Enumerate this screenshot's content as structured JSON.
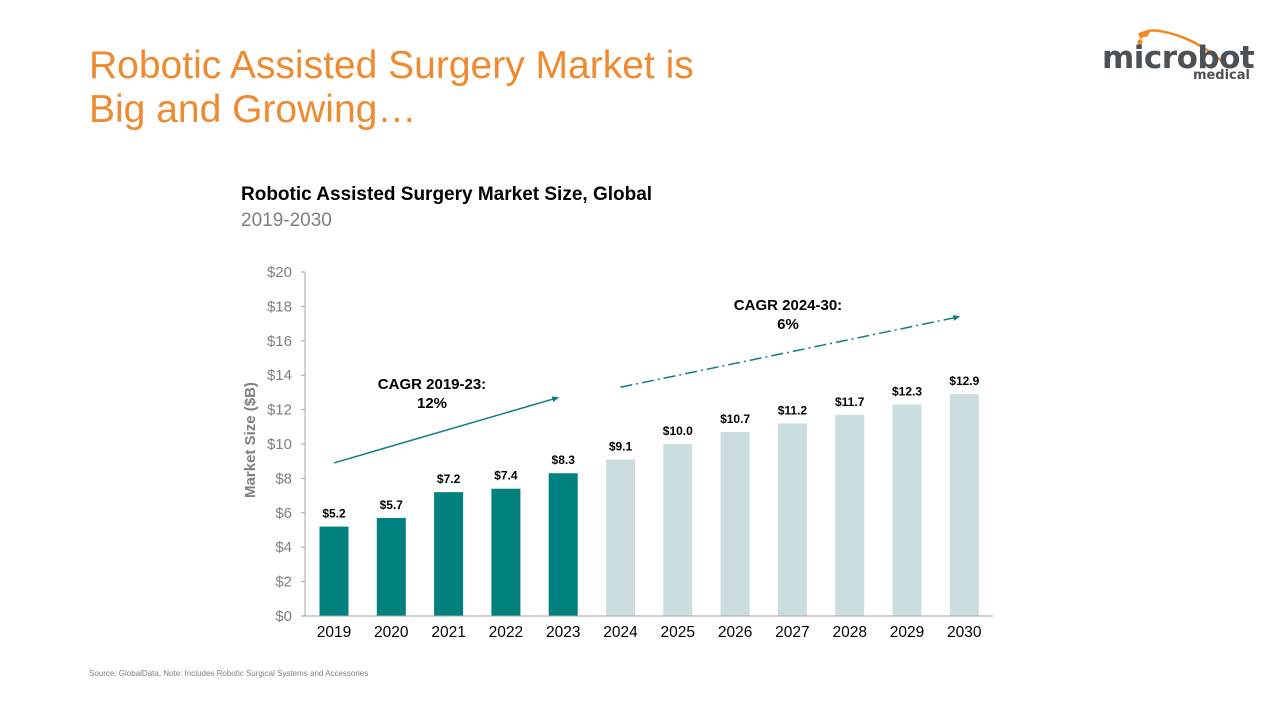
{
  "slide": {
    "title_line1": "Robotic Assisted Surgery Market is",
    "title_line2": "Big and Growing…",
    "source_note": "Source: GlobalData; Note: Includes Robotic Surgical Systems and Accessories"
  },
  "logo": {
    "main": "microbot",
    "sub": "medical",
    "swoosh_color": "#F08A24",
    "text_color": "#4A5258"
  },
  "colors": {
    "title": "#EE8A2F",
    "historical_bar": "#00807F",
    "forecast_bar": "#CCDDE0",
    "arrow": "#107F80",
    "axis": "#A6A6A6"
  },
  "chart_data": {
    "type": "bar",
    "title": "Robotic Assisted Surgery Market Size, Global",
    "subtitle": "2019-2030",
    "xlabel": "",
    "ylabel": "Market Size ($B)",
    "ylim": [
      0,
      20
    ],
    "yticks": [
      0,
      2,
      4,
      6,
      8,
      10,
      12,
      14,
      16,
      18,
      20
    ],
    "ytick_labels": [
      "$0",
      "$2",
      "$4",
      "$6",
      "$8",
      "$10",
      "$12",
      "$14",
      "$16",
      "$18",
      "$20"
    ],
    "grid": false,
    "legend": "none",
    "categories": [
      "2019",
      "2020",
      "2021",
      "2022",
      "2023",
      "2024",
      "2025",
      "2026",
      "2027",
      "2028",
      "2029",
      "2030"
    ],
    "values": [
      5.2,
      5.7,
      7.2,
      7.4,
      8.3,
      9.1,
      10.0,
      10.7,
      11.2,
      11.7,
      12.3,
      12.9
    ],
    "value_labels": [
      "$5.2",
      "$5.7",
      "$7.2",
      "$7.4",
      "$8.3",
      "$9.1",
      "$10.0",
      "$10.7",
      "$11.2",
      "$11.7",
      "$12.3",
      "$12.9"
    ],
    "series_kind": [
      "historical",
      "historical",
      "historical",
      "historical",
      "historical",
      "forecast",
      "forecast",
      "forecast",
      "forecast",
      "forecast",
      "forecast",
      "forecast"
    ],
    "annotations": [
      {
        "line1": "CAGR 2019-23:",
        "line2": "12%",
        "arrow_style": "solid",
        "arrow_from": {
          "x_index": 0,
          "y": 8.9
        },
        "arrow_to": {
          "x_index": 4,
          "y": 12.7
        }
      },
      {
        "line1": "CAGR 2024-30:",
        "line2": "6%",
        "arrow_style": "dash-dot",
        "arrow_from": {
          "x_index": 5,
          "y": 13.3
        },
        "arrow_to": {
          "x_index": 11,
          "y": 17.4
        }
      }
    ]
  }
}
